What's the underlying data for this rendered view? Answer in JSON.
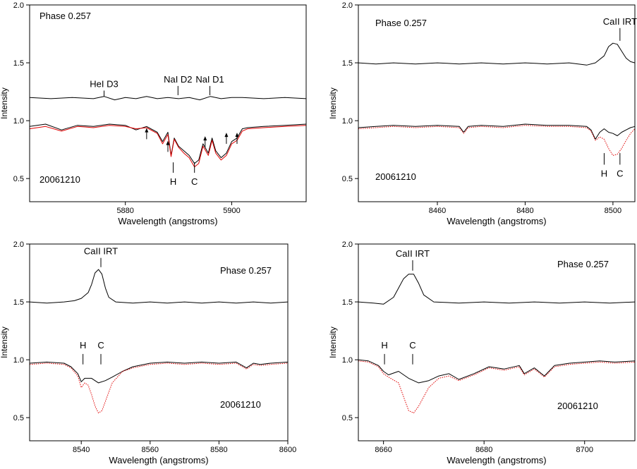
{
  "colors": {
    "observed": "#000000",
    "synthetic": "#e00000",
    "axis": "#000000"
  },
  "chart_data": [
    {
      "type": "line",
      "xlabel": "Wavelength (angstroms)",
      "ylabel": "Intensity",
      "xlim": [
        5862,
        5914
      ],
      "ylim": [
        0.3,
        2.0
      ],
      "xticks": [
        5880,
        5900
      ],
      "yticks": [
        0.5,
        1.0,
        1.5,
        2.0
      ],
      "ytick_labels": [
        "0.5",
        "1.0",
        "1.5",
        "2.0"
      ],
      "phase_label": "Phase 0.257",
      "date_label": "20061210",
      "grid": false,
      "series": [
        {
          "color": "black",
          "style": "solid",
          "x": [
            5862,
            5866,
            5870,
            5874,
            5876,
            5878,
            5880,
            5882,
            5884,
            5886,
            5888,
            5890,
            5892,
            5894,
            5896,
            5898,
            5900,
            5902,
            5906,
            5910,
            5914
          ],
          "y": [
            1.2,
            1.19,
            1.2,
            1.19,
            1.21,
            1.18,
            1.2,
            1.19,
            1.21,
            1.19,
            1.2,
            1.19,
            1.2,
            1.18,
            1.21,
            1.19,
            1.2,
            1.2,
            1.19,
            1.2,
            1.19
          ]
        },
        {
          "color": "black",
          "style": "solid",
          "x": [
            5862,
            5865,
            5868,
            5871,
            5874,
            5877,
            5880,
            5882,
            5884,
            5886,
            5887,
            5888,
            5888.6,
            5889.2,
            5890,
            5891,
            5892,
            5893,
            5893.8,
            5894.6,
            5895.6,
            5896.3,
            5897,
            5898,
            5899,
            5900,
            5901,
            5902,
            5903,
            5906,
            5910,
            5914
          ],
          "y": [
            0.95,
            0.97,
            0.92,
            0.96,
            0.95,
            0.97,
            0.96,
            0.92,
            0.95,
            0.9,
            0.82,
            0.9,
            0.7,
            0.85,
            0.78,
            0.74,
            0.7,
            0.63,
            0.66,
            0.8,
            0.72,
            0.85,
            0.74,
            0.68,
            0.72,
            0.82,
            0.85,
            0.93,
            0.94,
            0.95,
            0.96,
            0.97
          ]
        },
        {
          "color": "red",
          "style": "solid",
          "x": [
            5862,
            5865,
            5868,
            5871,
            5874,
            5877,
            5880,
            5882,
            5884,
            5886,
            5887,
            5888,
            5888.6,
            5889.2,
            5890,
            5891,
            5892,
            5893,
            5893.8,
            5894.6,
            5895.6,
            5896.3,
            5897,
            5898,
            5899,
            5900,
            5901,
            5902,
            5903,
            5906,
            5910,
            5914
          ],
          "y": [
            0.93,
            0.95,
            0.91,
            0.95,
            0.94,
            0.96,
            0.95,
            0.93,
            0.94,
            0.89,
            0.8,
            0.88,
            0.69,
            0.84,
            0.77,
            0.72,
            0.68,
            0.6,
            0.63,
            0.78,
            0.7,
            0.83,
            0.72,
            0.66,
            0.7,
            0.8,
            0.83,
            0.91,
            0.93,
            0.94,
            0.95,
            0.96
          ]
        }
      ],
      "line_labels": [
        {
          "text": "HeI D3",
          "x": 5876,
          "y": 1.27,
          "tick_y": [
            1.21,
            1.26
          ]
        },
        {
          "text": "NaI D2",
          "x": 5889.9,
          "y": 1.43,
          "tick_y": [
            1.22,
            1.3
          ]
        },
        {
          "text": "NaI D1",
          "x": 5895.9,
          "y": 1.43,
          "tick_y": [
            1.22,
            1.3
          ]
        }
      ],
      "ca_labels": [
        {
          "text": "H",
          "x": 5889,
          "tick_y": [
            0.55,
            0.64
          ],
          "y": 0.44
        },
        {
          "text": "C",
          "x": 5893,
          "tick_y": [
            0.55,
            0.64
          ],
          "y": 0.44
        }
      ],
      "arrows": [
        {
          "x": 5884,
          "from": 0.84,
          "to": 0.93
        },
        {
          "x": 5888,
          "from": 0.73,
          "to": 0.82
        },
        {
          "x": 5895,
          "from": 0.77,
          "to": 0.86
        },
        {
          "x": 5899,
          "from": 0.8,
          "to": 0.89
        },
        {
          "x": 5901,
          "from": 0.8,
          "to": 0.89
        }
      ]
    },
    {
      "type": "line",
      "xlabel": "Wavelength (angstroms)",
      "ylabel": "Intensity",
      "xlim": [
        8442,
        8505
      ],
      "ylim": [
        0.3,
        2.0
      ],
      "xticks": [
        8460,
        8480,
        8500
      ],
      "yticks": [
        0.5,
        1.0,
        1.5,
        2.0
      ],
      "ytick_labels": [
        "0.5",
        "1.0",
        "1.5",
        "2.0"
      ],
      "phase_label": "Phase 0.257",
      "date_label": "20061210",
      "ca_line_label": "CaII IRT",
      "grid": false,
      "series": [
        {
          "color": "black",
          "style": "solid",
          "x": [
            8442,
            8446,
            8450,
            8455,
            8460,
            8465,
            8470,
            8475,
            8480,
            8485,
            8490,
            8494,
            8496,
            8498,
            8499,
            8500,
            8501,
            8502,
            8503,
            8504,
            8505
          ],
          "y": [
            1.5,
            1.49,
            1.5,
            1.49,
            1.5,
            1.49,
            1.5,
            1.49,
            1.5,
            1.49,
            1.5,
            1.48,
            1.5,
            1.56,
            1.64,
            1.67,
            1.66,
            1.6,
            1.54,
            1.51,
            1.5
          ]
        },
        {
          "color": "black",
          "style": "solid",
          "x": [
            8442,
            8446,
            8450,
            8455,
            8460,
            8465,
            8466,
            8467,
            8470,
            8475,
            8480,
            8485,
            8490,
            8494,
            8495,
            8496,
            8497,
            8498,
            8499,
            8500,
            8501,
            8502,
            8503,
            8504,
            8505
          ],
          "y": [
            0.94,
            0.95,
            0.96,
            0.95,
            0.96,
            0.95,
            0.9,
            0.95,
            0.96,
            0.95,
            0.97,
            0.96,
            0.96,
            0.95,
            0.92,
            0.84,
            0.9,
            0.93,
            0.9,
            0.89,
            0.87,
            0.9,
            0.92,
            0.94,
            0.95
          ]
        },
        {
          "color": "red",
          "style": "dotted",
          "x": [
            8442,
            8446,
            8450,
            8455,
            8460,
            8465,
            8466,
            8467,
            8470,
            8475,
            8480,
            8485,
            8490,
            8494,
            8495,
            8496,
            8497,
            8498,
            8499,
            8500,
            8501,
            8502,
            8503,
            8504,
            8505
          ],
          "y": [
            0.93,
            0.94,
            0.95,
            0.94,
            0.95,
            0.94,
            0.89,
            0.94,
            0.95,
            0.94,
            0.96,
            0.95,
            0.95,
            0.94,
            0.91,
            0.83,
            0.86,
            0.84,
            0.76,
            0.7,
            0.71,
            0.76,
            0.83,
            0.89,
            0.93
          ]
        }
      ],
      "ca_labels": [
        {
          "text": "H",
          "x": 8498,
          "tick_y": [
            0.62,
            0.72
          ],
          "y": 0.51
        },
        {
          "text": "C",
          "x": 8501.6,
          "tick_y": [
            0.62,
            0.72
          ],
          "y": 0.51
        }
      ],
      "ca_line_tick": {
        "x": 8501.6,
        "tick_y": [
          1.69,
          1.8
        ]
      }
    },
    {
      "type": "line",
      "xlabel": "Wavelength (angstroms)",
      "ylabel": "Intensity",
      "xlim": [
        8525,
        8600
      ],
      "ylim": [
        0.3,
        2.0
      ],
      "xticks": [
        8540,
        8560,
        8580,
        8600
      ],
      "yticks": [
        0.5,
        1.0,
        1.5,
        2.0
      ],
      "ytick_labels": [
        "0.5",
        "1.0",
        "1.5",
        "2.0"
      ],
      "phase_label": "Phase 0.257",
      "date_label": "20061210",
      "ca_line_label": "CaII IRT",
      "grid": false,
      "series": [
        {
          "color": "black",
          "style": "solid",
          "x": [
            8525,
            8530,
            8535,
            8538,
            8540,
            8542,
            8543,
            8544,
            8545,
            8546,
            8547,
            8548,
            8550,
            8555,
            8560,
            8565,
            8570,
            8575,
            8580,
            8585,
            8590,
            8595,
            8600
          ],
          "y": [
            1.5,
            1.49,
            1.5,
            1.51,
            1.53,
            1.58,
            1.65,
            1.75,
            1.78,
            1.74,
            1.62,
            1.54,
            1.5,
            1.49,
            1.5,
            1.49,
            1.5,
            1.49,
            1.5,
            1.49,
            1.5,
            1.49,
            1.5
          ]
        },
        {
          "color": "black",
          "style": "solid",
          "x": [
            8525,
            8530,
            8535,
            8537,
            8539,
            8540,
            8541,
            8543,
            8545,
            8547,
            8549,
            8552,
            8555,
            8560,
            8565,
            8570,
            8575,
            8580,
            8585,
            8588,
            8590,
            8592,
            8595,
            8600
          ],
          "y": [
            0.97,
            0.98,
            0.97,
            0.94,
            0.88,
            0.81,
            0.84,
            0.84,
            0.8,
            0.82,
            0.85,
            0.9,
            0.94,
            0.97,
            0.98,
            0.97,
            0.98,
            0.97,
            0.98,
            0.93,
            0.97,
            0.96,
            0.97,
            0.98
          ]
        },
        {
          "color": "red",
          "style": "dotted",
          "x": [
            8525,
            8530,
            8535,
            8537,
            8539,
            8540,
            8541,
            8542,
            8543,
            8544,
            8545,
            8546,
            8547,
            8549,
            8552,
            8555,
            8560,
            8565,
            8570,
            8575,
            8580,
            8585,
            8588,
            8590,
            8592,
            8595,
            8600
          ],
          "y": [
            0.96,
            0.97,
            0.96,
            0.93,
            0.86,
            0.76,
            0.8,
            0.78,
            0.7,
            0.6,
            0.54,
            0.56,
            0.64,
            0.8,
            0.9,
            0.93,
            0.96,
            0.97,
            0.96,
            0.97,
            0.96,
            0.97,
            0.92,
            0.96,
            0.95,
            0.96,
            0.97
          ]
        }
      ],
      "ca_labels": [
        {
          "text": "H",
          "x": 8540.5,
          "tick_y": [
            0.96,
            1.05
          ],
          "y": 1.12
        },
        {
          "text": "C",
          "x": 8545.7,
          "tick_y": [
            0.96,
            1.05
          ],
          "y": 1.12
        }
      ],
      "ca_line_tick": {
        "x": 8545.7,
        "tick_y": [
          1.8,
          1.88
        ]
      }
    },
    {
      "type": "line",
      "xlabel": "Wavelength (angstroms)",
      "ylabel": "Intensity",
      "xlim": [
        8655,
        8710
      ],
      "ylim": [
        0.3,
        2.0
      ],
      "xticks": [
        8660,
        8680,
        8700
      ],
      "yticks": [
        0.5,
        1.0,
        1.5,
        2.0
      ],
      "ytick_labels": [
        "0.5",
        "1.0",
        "1.5",
        "2.0"
      ],
      "phase_label": "Phase 0.257",
      "date_label": "20061210",
      "ca_line_label": "CaII IRT",
      "grid": false,
      "series": [
        {
          "color": "black",
          "style": "solid",
          "x": [
            8655,
            8658,
            8660,
            8662,
            8663,
            8664,
            8665,
            8666,
            8667,
            8668,
            8670,
            8675,
            8680,
            8685,
            8690,
            8695,
            8700,
            8705,
            8710
          ],
          "y": [
            1.5,
            1.49,
            1.48,
            1.54,
            1.62,
            1.7,
            1.74,
            1.74,
            1.66,
            1.56,
            1.5,
            1.49,
            1.5,
            1.49,
            1.5,
            1.49,
            1.5,
            1.49,
            1.5
          ]
        },
        {
          "color": "black",
          "style": "solid",
          "x": [
            8655,
            8657,
            8659,
            8660,
            8661,
            8663,
            8665,
            8667,
            8669,
            8671,
            8673,
            8675,
            8678,
            8681,
            8684,
            8687,
            8688,
            8690,
            8692,
            8694,
            8697,
            8700,
            8703,
            8706,
            8710
          ],
          "y": [
            1.0,
            0.99,
            0.95,
            0.9,
            0.87,
            0.9,
            0.84,
            0.8,
            0.82,
            0.86,
            0.88,
            0.83,
            0.88,
            0.94,
            0.92,
            0.95,
            0.88,
            0.93,
            0.86,
            0.95,
            0.97,
            0.98,
            0.99,
            0.98,
            0.99
          ]
        },
        {
          "color": "red",
          "style": "dotted",
          "x": [
            8655,
            8657,
            8659,
            8660,
            8661,
            8663,
            8664,
            8665,
            8666,
            8667,
            8669,
            8671,
            8673,
            8675,
            8678,
            8681,
            8684,
            8687,
            8688,
            8690,
            8692,
            8694,
            8697,
            8700,
            8703,
            8706,
            8710
          ],
          "y": [
            0.99,
            0.98,
            0.94,
            0.88,
            0.85,
            0.8,
            0.68,
            0.56,
            0.54,
            0.6,
            0.76,
            0.84,
            0.86,
            0.82,
            0.87,
            0.93,
            0.91,
            0.94,
            0.87,
            0.92,
            0.85,
            0.94,
            0.96,
            0.97,
            0.98,
            0.97,
            0.98
          ]
        }
      ],
      "ca_labels": [
        {
          "text": "H",
          "x": 8660.2,
          "tick_y": [
            0.96,
            1.05
          ],
          "y": 1.11
        },
        {
          "text": "C",
          "x": 8665.8,
          "tick_y": [
            0.96,
            1.05
          ],
          "y": 1.11
        }
      ],
      "ca_line_tick": {
        "x": 8665.8,
        "tick_y": [
          1.77,
          1.86
        ]
      }
    }
  ]
}
